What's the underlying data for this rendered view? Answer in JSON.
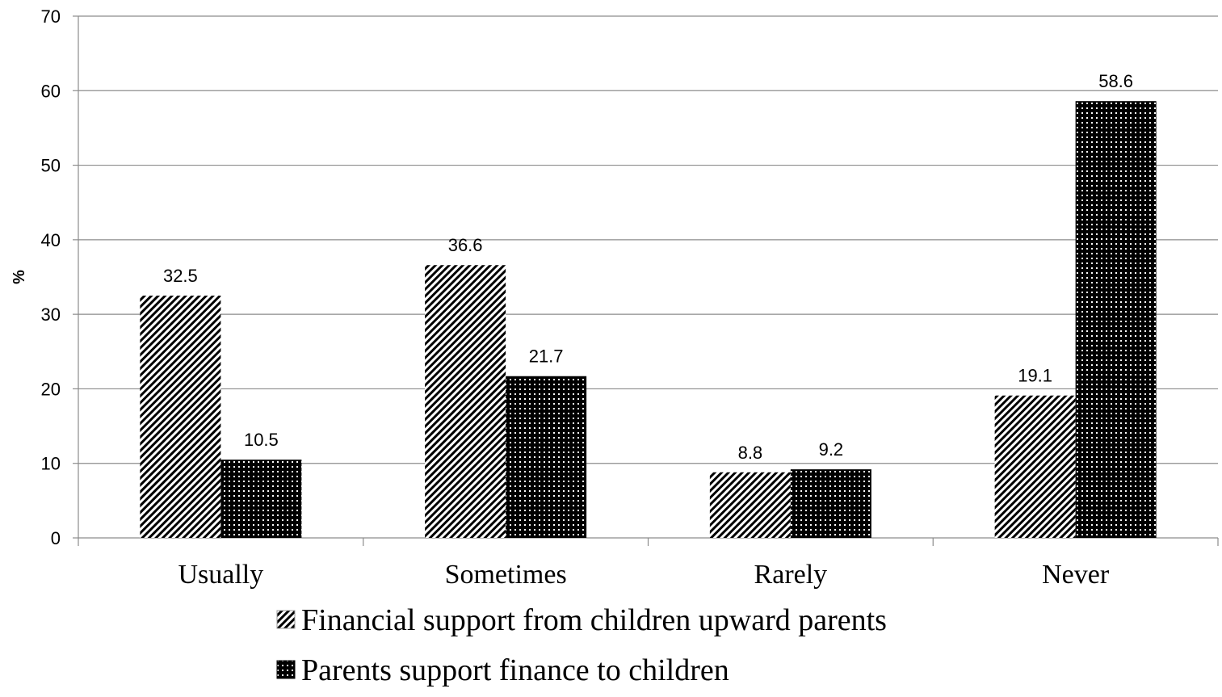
{
  "chart_data": {
    "type": "bar",
    "title": "",
    "xlabel": "",
    "ylabel": "%",
    "ylim": [
      0,
      70
    ],
    "yticks": [
      0,
      10,
      20,
      30,
      40,
      50,
      60,
      70
    ],
    "grid": true,
    "legend_position": "bottom",
    "categories": [
      "Usually",
      "Sometimes",
      "Rarely",
      "Never"
    ],
    "series": [
      {
        "name": "Financial support from children upward parents",
        "values": [
          32.5,
          36.6,
          8.8,
          19.1
        ],
        "pattern": "diagonal-hatch",
        "color": "#ffffff"
      },
      {
        "name": "Parents support finance to children",
        "values": [
          10.5,
          21.7,
          9.2,
          58.6
        ],
        "pattern": "dotted-dark",
        "color": "#000000"
      }
    ],
    "data_labels": [
      [
        "32.5",
        "36.6",
        "8.8",
        "19.1"
      ],
      [
        "10.5",
        "21.7",
        "9.2",
        "58.6"
      ]
    ]
  }
}
